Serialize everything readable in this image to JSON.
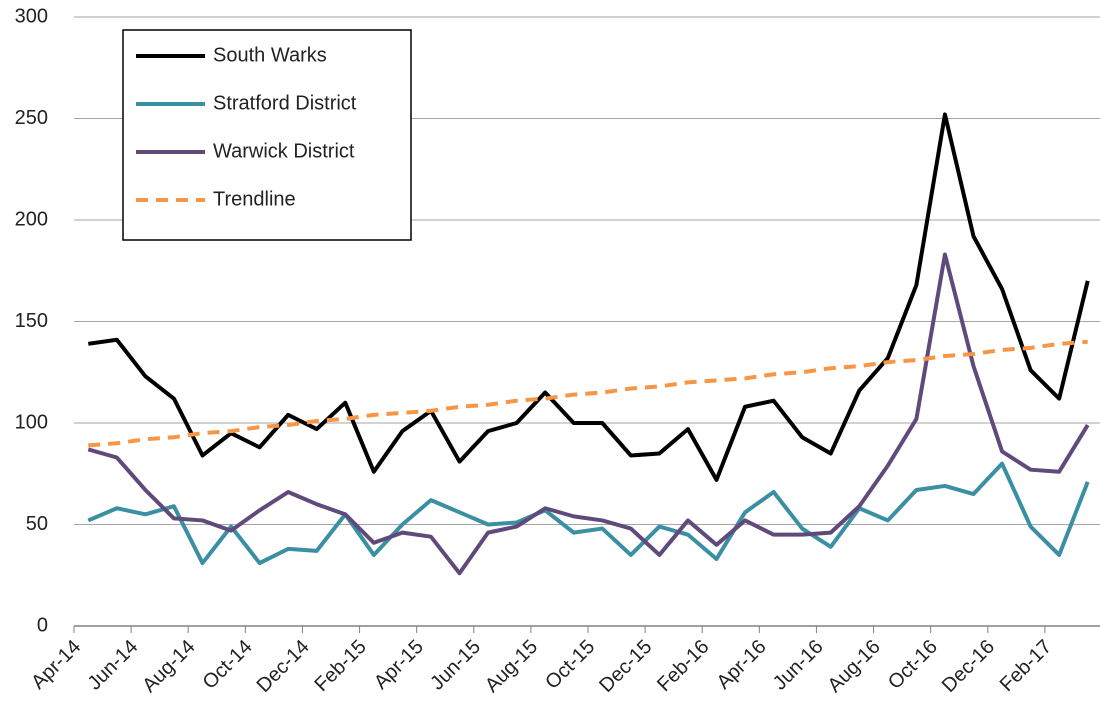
{
  "chart_data": {
    "type": "line",
    "categories": [
      "Apr-14",
      null,
      "Jun-14",
      null,
      "Aug-14",
      null,
      "Oct-14",
      null,
      "Dec-14",
      null,
      "Feb-15",
      null,
      "Apr-15",
      null,
      "Jun-15",
      null,
      "Aug-15",
      null,
      "Oct-15",
      null,
      "Dec-15",
      null,
      "Feb-16",
      null,
      "Apr-16",
      null,
      "Jun-16",
      null,
      "Aug-16",
      null,
      "Oct-16",
      null,
      "Dec-16",
      null,
      "Feb-17",
      null
    ],
    "series": [
      {
        "name": "South Warks",
        "color": "#000000",
        "values": [
          139,
          141,
          123,
          112,
          84,
          95,
          88,
          104,
          97,
          110,
          76,
          96,
          106,
          81,
          96,
          100,
          115,
          100,
          100,
          84,
          85,
          97,
          72,
          108,
          111,
          93,
          85,
          116,
          132,
          168,
          252,
          192,
          166,
          126,
          112,
          170
        ]
      },
      {
        "name": "Stratford District",
        "color": "#3a8fa3",
        "values": [
          52,
          58,
          55,
          59,
          31,
          49,
          31,
          38,
          37,
          55,
          35,
          50,
          62,
          56,
          50,
          51,
          57,
          46,
          48,
          35,
          49,
          45,
          33,
          56,
          66,
          48,
          39,
          58,
          52,
          67,
          69,
          65,
          80,
          49,
          35,
          71
        ]
      },
      {
        "name": "Warwick District",
        "color": "#604a7b",
        "values": [
          87,
          83,
          67,
          53,
          52,
          47,
          57,
          66,
          60,
          55,
          41,
          46,
          44,
          26,
          46,
          49,
          58,
          54,
          52,
          48,
          35,
          52,
          40,
          52,
          45,
          45,
          46,
          59,
          79,
          102,
          183,
          128,
          86,
          77,
          76,
          99
        ]
      },
      {
        "name": "Trendline",
        "color": "#f79646",
        "dashed": true,
        "values": [
          89,
          90,
          92,
          93,
          95,
          96,
          98,
          99,
          101,
          102,
          104,
          105,
          106,
          108,
          109,
          111,
          112,
          114,
          115,
          117,
          118,
          120,
          121,
          122,
          124,
          125,
          127,
          128,
          130,
          131,
          133,
          134,
          136,
          137,
          139,
          140
        ]
      }
    ],
    "ylim": [
      0,
      300
    ],
    "yticks": [
      0,
      50,
      100,
      150,
      200,
      250,
      300
    ],
    "grid": true,
    "legend": "upper left"
  }
}
